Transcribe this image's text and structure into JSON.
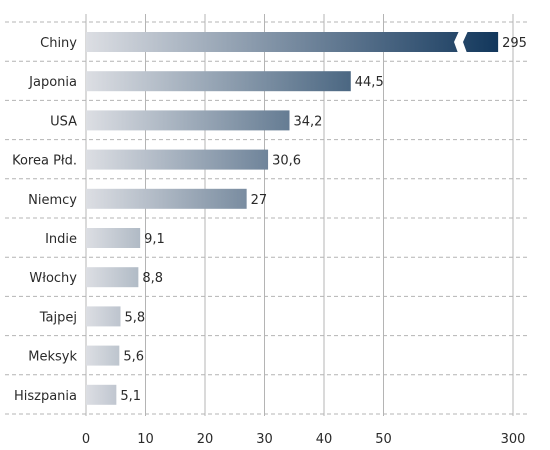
{
  "chart_data": {
    "type": "bar",
    "orientation": "horizontal",
    "categories": [
      "Chiny",
      "Japonia",
      "USA",
      "Korea Płd.",
      "Niemcy",
      "Indie",
      "Włochy",
      "Tajpej",
      "Meksyk",
      "Hiszpania"
    ],
    "values": [
      295,
      44.5,
      34.2,
      30.6,
      27,
      9.1,
      8.8,
      5.8,
      5.6,
      5.1
    ],
    "value_labels": [
      "295",
      "44,5",
      "34,2",
      "30,6",
      "27",
      "9,1",
      "8,8",
      "5,8",
      "5,6",
      "5,1"
    ],
    "title": "",
    "xlabel": "",
    "ylabel": "",
    "axis_break": true,
    "xlim": [
      0,
      300
    ],
    "x_ticks": [
      0,
      10,
      20,
      30,
      40,
      50,
      300
    ],
    "x_tick_labels": [
      "0",
      "10",
      "20",
      "30",
      "40",
      "50",
      "300"
    ],
    "grid": true,
    "colors": {
      "gradient_start": "#dcdee3",
      "gradient_end": "#0d3358",
      "grid": "#b4b4b4",
      "text": "#2a2a2a"
    }
  }
}
